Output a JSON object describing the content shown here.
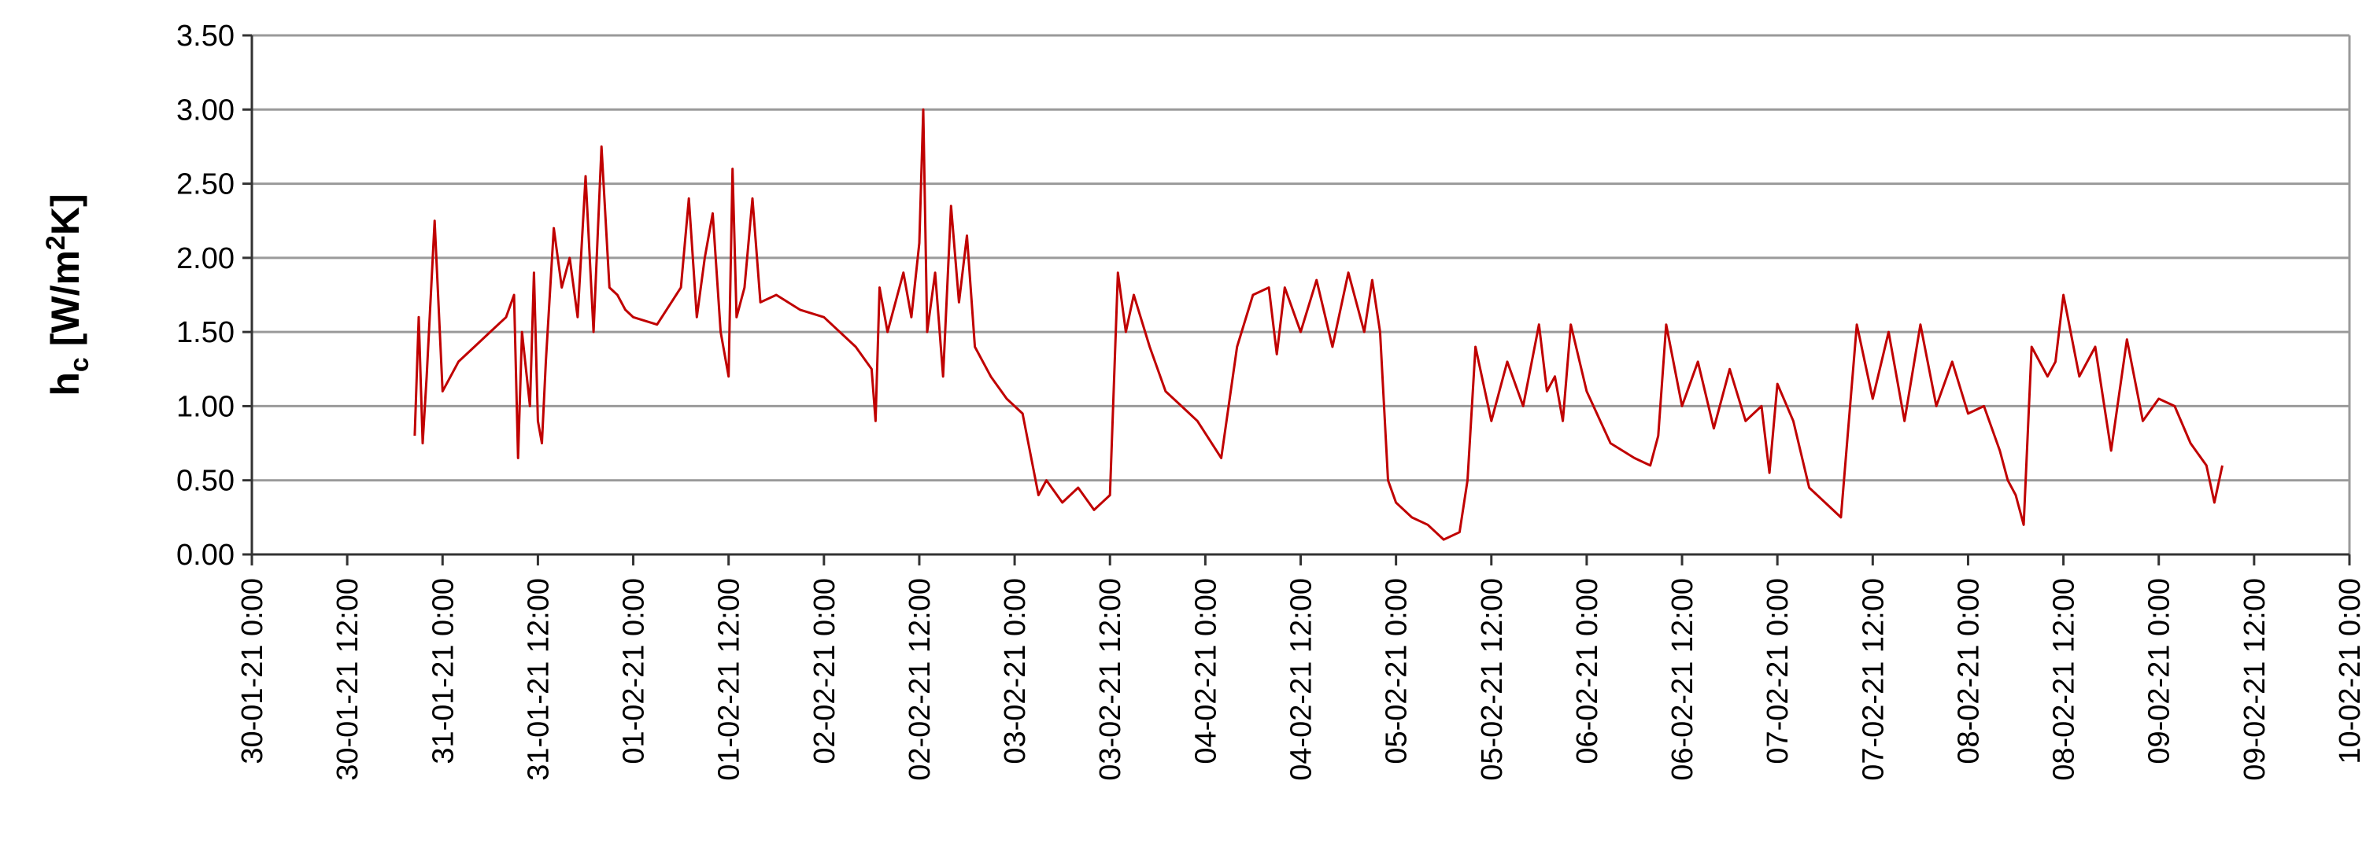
{
  "chart_data": {
    "type": "line",
    "title": "",
    "xlabel": "",
    "ylabel": {
      "main": "h",
      "sub": "c",
      "unit_prefix": " [W/m",
      "sup": "2",
      "unit_suffix": "K]"
    },
    "ylim": [
      0,
      3.5
    ],
    "yticks": [
      "0.00",
      "0.50",
      "1.00",
      "1.50",
      "2.00",
      "2.50",
      "3.00",
      "3.50"
    ],
    "xlim": [
      "30-01-21 0:00",
      "10-02-21 0:00"
    ],
    "xticks": [
      "30-01-21  0:00",
      "30-01-21  12:00",
      "31-01-21  0:00",
      "31-01-21  12:00",
      "01-02-21  0:00",
      "01-02-21  12:00",
      "02-02-21  0:00",
      "02-02-21  12:00",
      "03-02-21  0:00",
      "03-02-21  12:00",
      "04-02-21  0:00",
      "04-02-21  12:00",
      "05-02-21  0:00",
      "05-02-21  12:00",
      "06-02-21  0:00",
      "06-02-21  12:00",
      "07-02-21  0:00",
      "07-02-21  12:00",
      "08-02-21  0:00",
      "08-02-21  12:00",
      "09-02-21  0:00",
      "09-02-21  12:00",
      "10-02-21  0:00"
    ],
    "grid": "horizontal",
    "legend": "none",
    "series": [
      {
        "color": "#c00000",
        "x": [
          "30-01-21 20:30",
          "30-01-21 21:00",
          "30-01-21 21:30",
          "30-01-21 22:00",
          "30-01-21 23:00",
          "31-01-21 0:00",
          "31-01-21 2:00",
          "31-01-21 4:00",
          "31-01-21 6:00",
          "31-01-21 8:00",
          "31-01-21 9:00",
          "31-01-21 9:30",
          "31-01-21 10:00",
          "31-01-21 11:00",
          "31-01-21 11:30",
          "31-01-21 12:00",
          "31-01-21 12:30",
          "31-01-21 13:00",
          "31-01-21 14:00",
          "31-01-21 15:00",
          "31-01-21 16:00",
          "31-01-21 17:00",
          "31-01-21 18:00",
          "31-01-21 19:00",
          "31-01-21 20:00",
          "31-01-21 21:00",
          "31-01-21 22:00",
          "31-01-21 23:00",
          "01-02-21 0:00",
          "01-02-21 3:00",
          "01-02-21 6:00",
          "01-02-21 7:00",
          "01-02-21 8:00",
          "01-02-21 9:00",
          "01-02-21 10:00",
          "01-02-21 11:00",
          "01-02-21 12:00",
          "01-02-21 12:30",
          "01-02-21 13:00",
          "01-02-21 14:00",
          "01-02-21 15:00",
          "01-02-21 16:00",
          "01-02-21 18:00",
          "01-02-21 21:00",
          "02-02-21 0:00",
          "02-02-21 4:00",
          "02-02-21 6:00",
          "02-02-21 6:30",
          "02-02-21 7:00",
          "02-02-21 8:00",
          "02-02-21 10:00",
          "02-02-21 11:00",
          "02-02-21 12:00",
          "02-02-21 12:30",
          "02-02-21 13:00",
          "02-02-21 14:00",
          "02-02-21 15:00",
          "02-02-21 16:00",
          "02-02-21 17:00",
          "02-02-21 18:00",
          "02-02-21 19:00",
          "02-02-21 21:00",
          "02-02-21 23:00",
          "03-02-21 1:00",
          "03-02-21 3:00",
          "03-02-21 4:00",
          "03-02-21 6:00",
          "03-02-21 8:00",
          "03-02-21 10:00",
          "03-02-21 12:00",
          "03-02-21 13:00",
          "03-02-21 14:00",
          "03-02-21 15:00",
          "03-02-21 17:00",
          "03-02-21 19:00",
          "03-02-21 21:00",
          "03-02-21 23:00",
          "04-02-21 2:00",
          "04-02-21 4:00",
          "04-02-21 6:00",
          "04-02-21 8:00",
          "04-02-21 9:00",
          "04-02-21 10:00",
          "04-02-21 12:00",
          "04-02-21 14:00",
          "04-02-21 16:00",
          "04-02-21 18:00",
          "04-02-21 20:00",
          "04-02-21 21:00",
          "04-02-21 22:00",
          "04-02-21 23:00",
          "05-02-21 0:00",
          "05-02-21 2:00",
          "05-02-21 4:00",
          "05-02-21 6:00",
          "05-02-21 8:00",
          "05-02-21 9:00",
          "05-02-21 10:00",
          "05-02-21 12:00",
          "05-02-21 14:00",
          "05-02-21 16:00",
          "05-02-21 18:00",
          "05-02-21 19:00",
          "05-02-21 20:00",
          "05-02-21 21:00",
          "05-02-21 22:00",
          "06-02-21 0:00",
          "06-02-21 3:00",
          "06-02-21 6:00",
          "06-02-21 8:00",
          "06-02-21 9:00",
          "06-02-21 10:00",
          "06-02-21 12:00",
          "06-02-21 14:00",
          "06-02-21 16:00",
          "06-02-21 18:00",
          "06-02-21 20:00",
          "06-02-21 22:00",
          "06-02-21 23:00",
          "07-02-21 0:00",
          "07-02-21 2:00",
          "07-02-21 4:00",
          "07-02-21 6:00",
          "07-02-21 7:00",
          "07-02-21 8:00",
          "07-02-21 10:00",
          "07-02-21 12:00",
          "07-02-21 14:00",
          "07-02-21 16:00",
          "07-02-21 18:00",
          "07-02-21 20:00",
          "07-02-21 22:00",
          "08-02-21 0:00",
          "08-02-21 2:00",
          "08-02-21 4:00",
          "08-02-21 5:00",
          "08-02-21 6:00",
          "08-02-21 7:00",
          "08-02-21 8:00",
          "08-02-21 10:00",
          "08-02-21 11:00",
          "08-02-21 12:00",
          "08-02-21 14:00",
          "08-02-21 16:00",
          "08-02-21 18:00",
          "08-02-21 20:00",
          "08-02-21 22:00",
          "09-02-21 0:00",
          "09-02-21 2:00",
          "09-02-21 4:00",
          "09-02-21 6:00",
          "09-02-21 7:00",
          "09-02-21 8:00"
        ],
        "y": [
          0.8,
          1.6,
          0.75,
          1.2,
          2.25,
          1.1,
          1.3,
          1.4,
          1.5,
          1.6,
          1.75,
          0.65,
          1.5,
          1.0,
          1.9,
          0.9,
          0.75,
          1.3,
          2.2,
          1.8,
          2.0,
          1.6,
          2.55,
          1.5,
          2.75,
          1.8,
          1.75,
          1.65,
          1.6,
          1.55,
          1.8,
          2.4,
          1.6,
          2.0,
          2.3,
          1.5,
          1.2,
          2.6,
          1.6,
          1.8,
          2.4,
          1.7,
          1.75,
          1.65,
          1.6,
          1.4,
          1.25,
          0.9,
          1.8,
          1.5,
          1.9,
          1.6,
          2.1,
          3.0,
          1.5,
          1.9,
          1.2,
          2.35,
          1.7,
          2.15,
          1.4,
          1.2,
          1.05,
          0.95,
          0.4,
          0.5,
          0.35,
          0.45,
          0.3,
          0.4,
          1.9,
          1.5,
          1.75,
          1.4,
          1.1,
          1.0,
          0.9,
          0.65,
          1.4,
          1.75,
          1.8,
          1.35,
          1.8,
          1.5,
          1.85,
          1.4,
          1.9,
          1.5,
          1.85,
          1.5,
          0.5,
          0.35,
          0.25,
          0.2,
          0.1,
          0.15,
          0.5,
          1.4,
          0.9,
          1.3,
          1.0,
          1.55,
          1.1,
          1.2,
          0.9,
          1.55,
          1.1,
          0.75,
          0.65,
          0.6,
          0.8,
          1.55,
          1.0,
          1.3,
          0.85,
          1.25,
          0.9,
          1.0,
          0.55,
          1.15,
          0.9,
          0.45,
          0.35,
          0.3,
          0.25,
          1.55,
          1.05,
          1.5,
          0.9,
          1.55,
          1.0,
          1.3,
          0.95,
          1.0,
          0.7,
          0.5,
          0.4,
          0.2,
          1.4,
          1.2,
          1.3,
          1.75,
          1.2,
          1.4,
          0.7,
          1.45,
          0.9,
          1.05,
          1.0,
          0.75,
          0.6,
          0.35,
          0.6
        ]
      }
    ]
  }
}
